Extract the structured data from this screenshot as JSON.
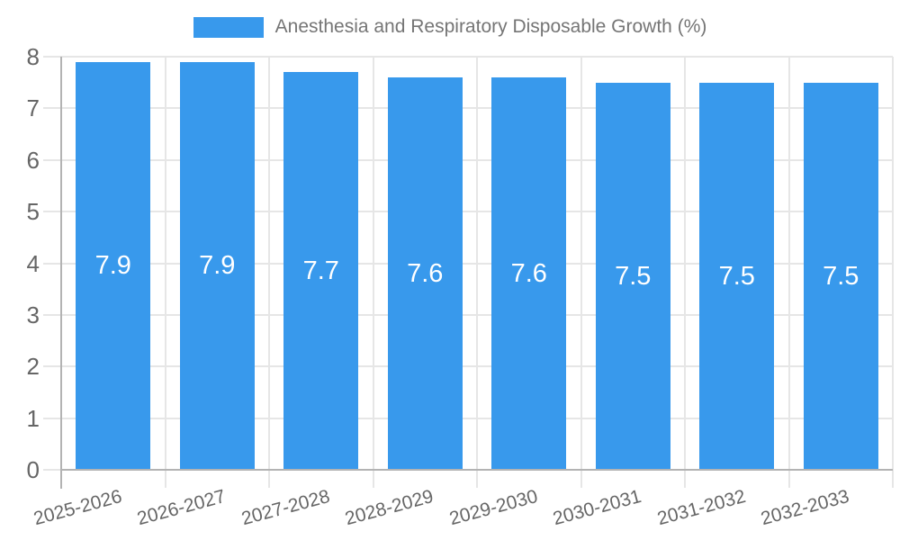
{
  "chart_data": {
    "type": "bar",
    "title": "Anesthesia and Respiratory Disposable Growth (%)",
    "categories": [
      "2025-2026",
      "2026-2027",
      "2027-2028",
      "2028-2029",
      "2029-2030",
      "2030-2031",
      "2031-2032",
      "2032-2033"
    ],
    "values": [
      7.9,
      7.9,
      7.7,
      7.6,
      7.6,
      7.5,
      7.5,
      7.5
    ],
    "value_labels": [
      "7.9",
      "7.9",
      "7.7",
      "7.6",
      "7.6",
      "7.5",
      "7.5",
      "7.5"
    ],
    "xlabel": "",
    "ylabel": "",
    "ylim": [
      0,
      8
    ],
    "y_ticks": [
      0,
      1,
      2,
      3,
      4,
      5,
      6,
      7,
      8
    ],
    "grid": true,
    "legend_position": "top",
    "colors": {
      "bar": "#3899EC",
      "bar_label": "#FFFFFF",
      "grid": "#E6E6E6",
      "axis_line": "#B3B3B3",
      "axis_text": "#666666",
      "legend_text": "#757575",
      "background": "#FFFFFF"
    }
  }
}
